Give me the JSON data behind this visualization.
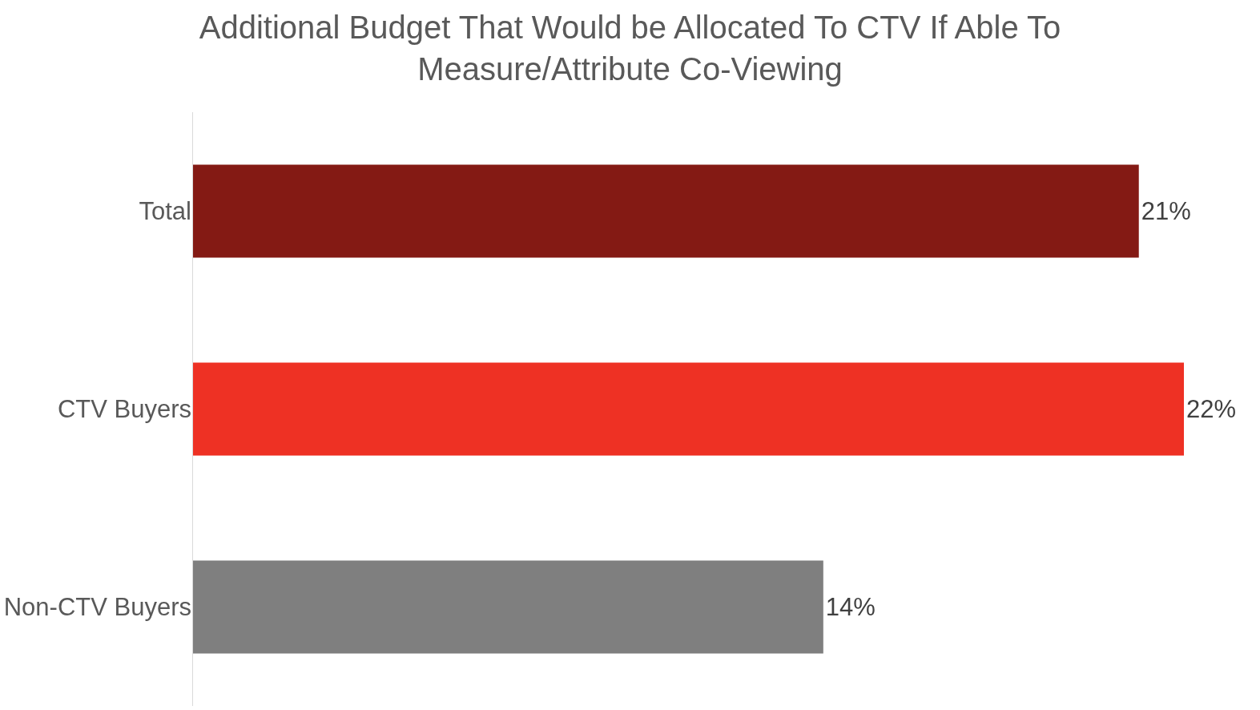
{
  "chart_data": {
    "type": "bar",
    "orientation": "horizontal",
    "title": "Additional Budget That Would be Allocated To CTV If Able To\nMeasure/Attribute Co-Viewing",
    "categories": [
      "Total",
      "CTV Buyers",
      "Non-CTV Buyers"
    ],
    "values": [
      21,
      22,
      14
    ],
    "colors": [
      "#841a14",
      "#ee3124",
      "#7f7f7f"
    ],
    "value_labels": [
      "21%",
      "22%",
      "14%"
    ],
    "legend": false
  }
}
